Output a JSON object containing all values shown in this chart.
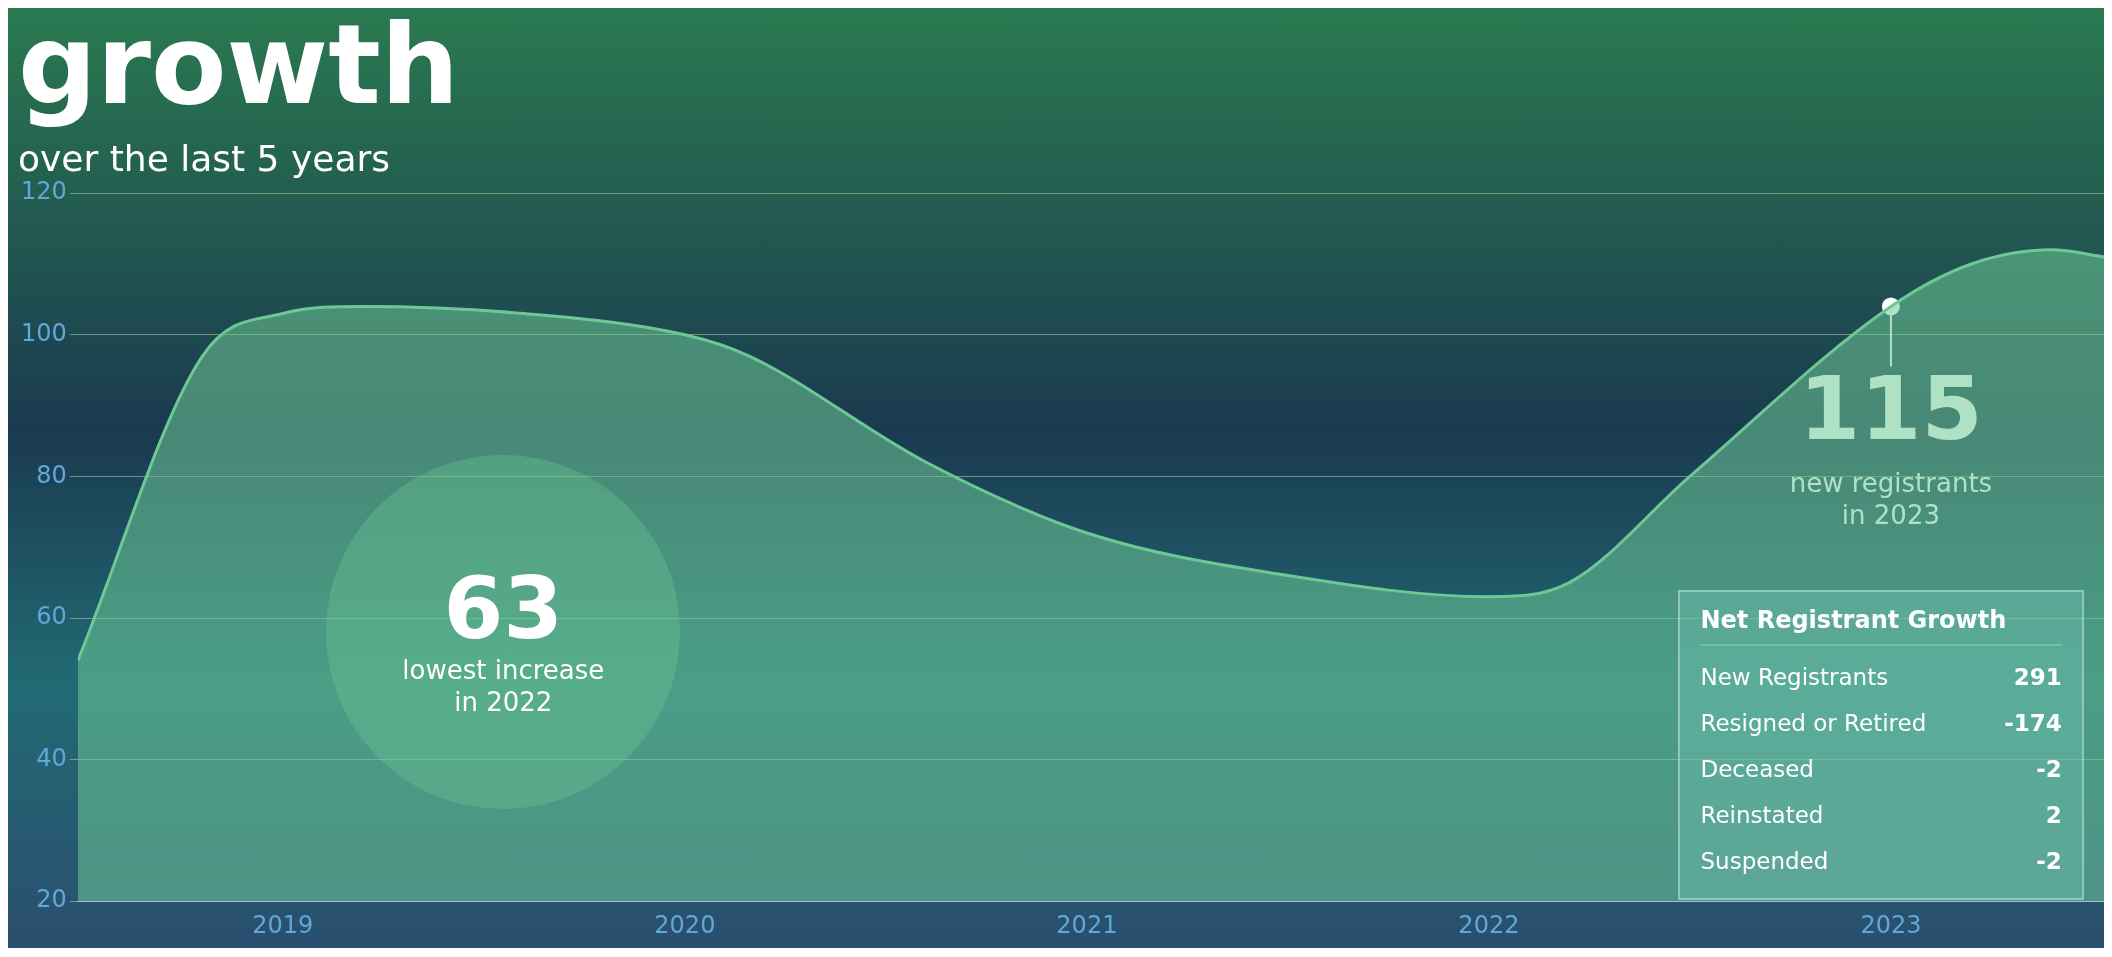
{
  "chart_data": [
    {
      "type": "area",
      "title": "growth",
      "subtitle": "over the last 5 years",
      "x": [
        2018.49,
        2018.8,
        2019,
        2019.2,
        2019.6,
        2020,
        2020.16,
        2020.6,
        2021,
        2021.5,
        2022,
        2022.2,
        2022.5,
        2023,
        2023.2,
        2023.4,
        2023.53
      ],
      "series": [
        {
          "color": "#6ec896",
          "values": [
            54,
            97,
            103,
            104,
            103,
            100,
            97,
            82,
            72,
            66,
            63,
            65,
            80,
            104,
            110,
            112,
            111
          ]
        }
      ],
      "xlim": [
        2018.49,
        2023.53
      ],
      "xticks": [
        2019,
        2020,
        2021,
        2022,
        2023
      ],
      "ylim": [
        20,
        120
      ],
      "yticks": [
        20,
        40,
        60,
        80,
        100,
        120
      ],
      "grid": "y",
      "legend": false,
      "annotations": [
        {
          "text": "115",
          "x": 2023,
          "y": 104
        },
        "new registrants\nin 2023",
        "63",
        "lowest increase\nin 2022"
      ]
    },
    {
      "type": "other",
      "title": "Net Registrant Growth",
      "categories": [
        "New Registrants",
        "Resigned or Retired",
        "Deceased",
        "Reinstated",
        "Suspended"
      ],
      "values": [
        291,
        -174,
        -2,
        2,
        -2
      ],
      "data_labels": true
    }
  ]
}
